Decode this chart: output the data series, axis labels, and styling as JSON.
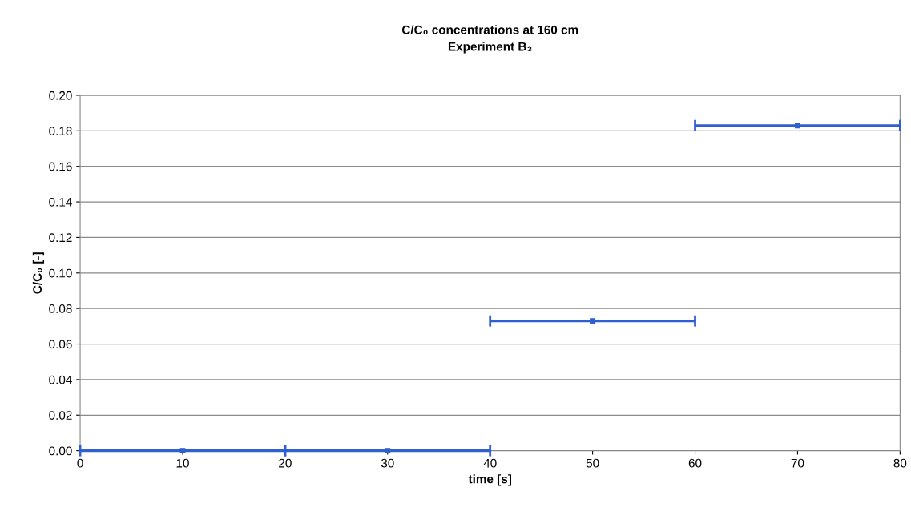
{
  "chart_data": {
    "type": "scatter",
    "title": "C/C₀ concentrations at 160 cm\nExperiment B₃",
    "xlabel": "time [s]",
    "ylabel": "C/C₀ [-]",
    "x": [
      10,
      30,
      50,
      70
    ],
    "values": [
      0,
      0,
      0.073,
      0.183
    ],
    "xerrors": [
      10,
      10,
      10,
      10
    ],
    "color": "#2f5fd0",
    "marker": "square",
    "xlim": [
      0,
      80
    ],
    "xticks": [
      0,
      10,
      20,
      30,
      40,
      50,
      60,
      70,
      80
    ],
    "ylim": [
      0,
      0.2
    ],
    "yticks": [
      {
        "value": 0,
        "label": "0.00"
      },
      {
        "value": 0.02,
        "label": "0.02"
      },
      {
        "value": 0.04,
        "label": "0.04"
      },
      {
        "value": 0.06,
        "label": "0.06"
      },
      {
        "value": 0.08,
        "label": "0.08"
      },
      {
        "value": 0.1,
        "label": "0.10"
      },
      {
        "value": 0.12,
        "label": "0.12"
      },
      {
        "value": 0.14,
        "label": "0.14"
      },
      {
        "value": 0.16,
        "label": "0.16"
      },
      {
        "value": 0.18,
        "label": "0.18"
      },
      {
        "value": 0.2,
        "label": "0.20"
      }
    ],
    "grid": "y"
  }
}
